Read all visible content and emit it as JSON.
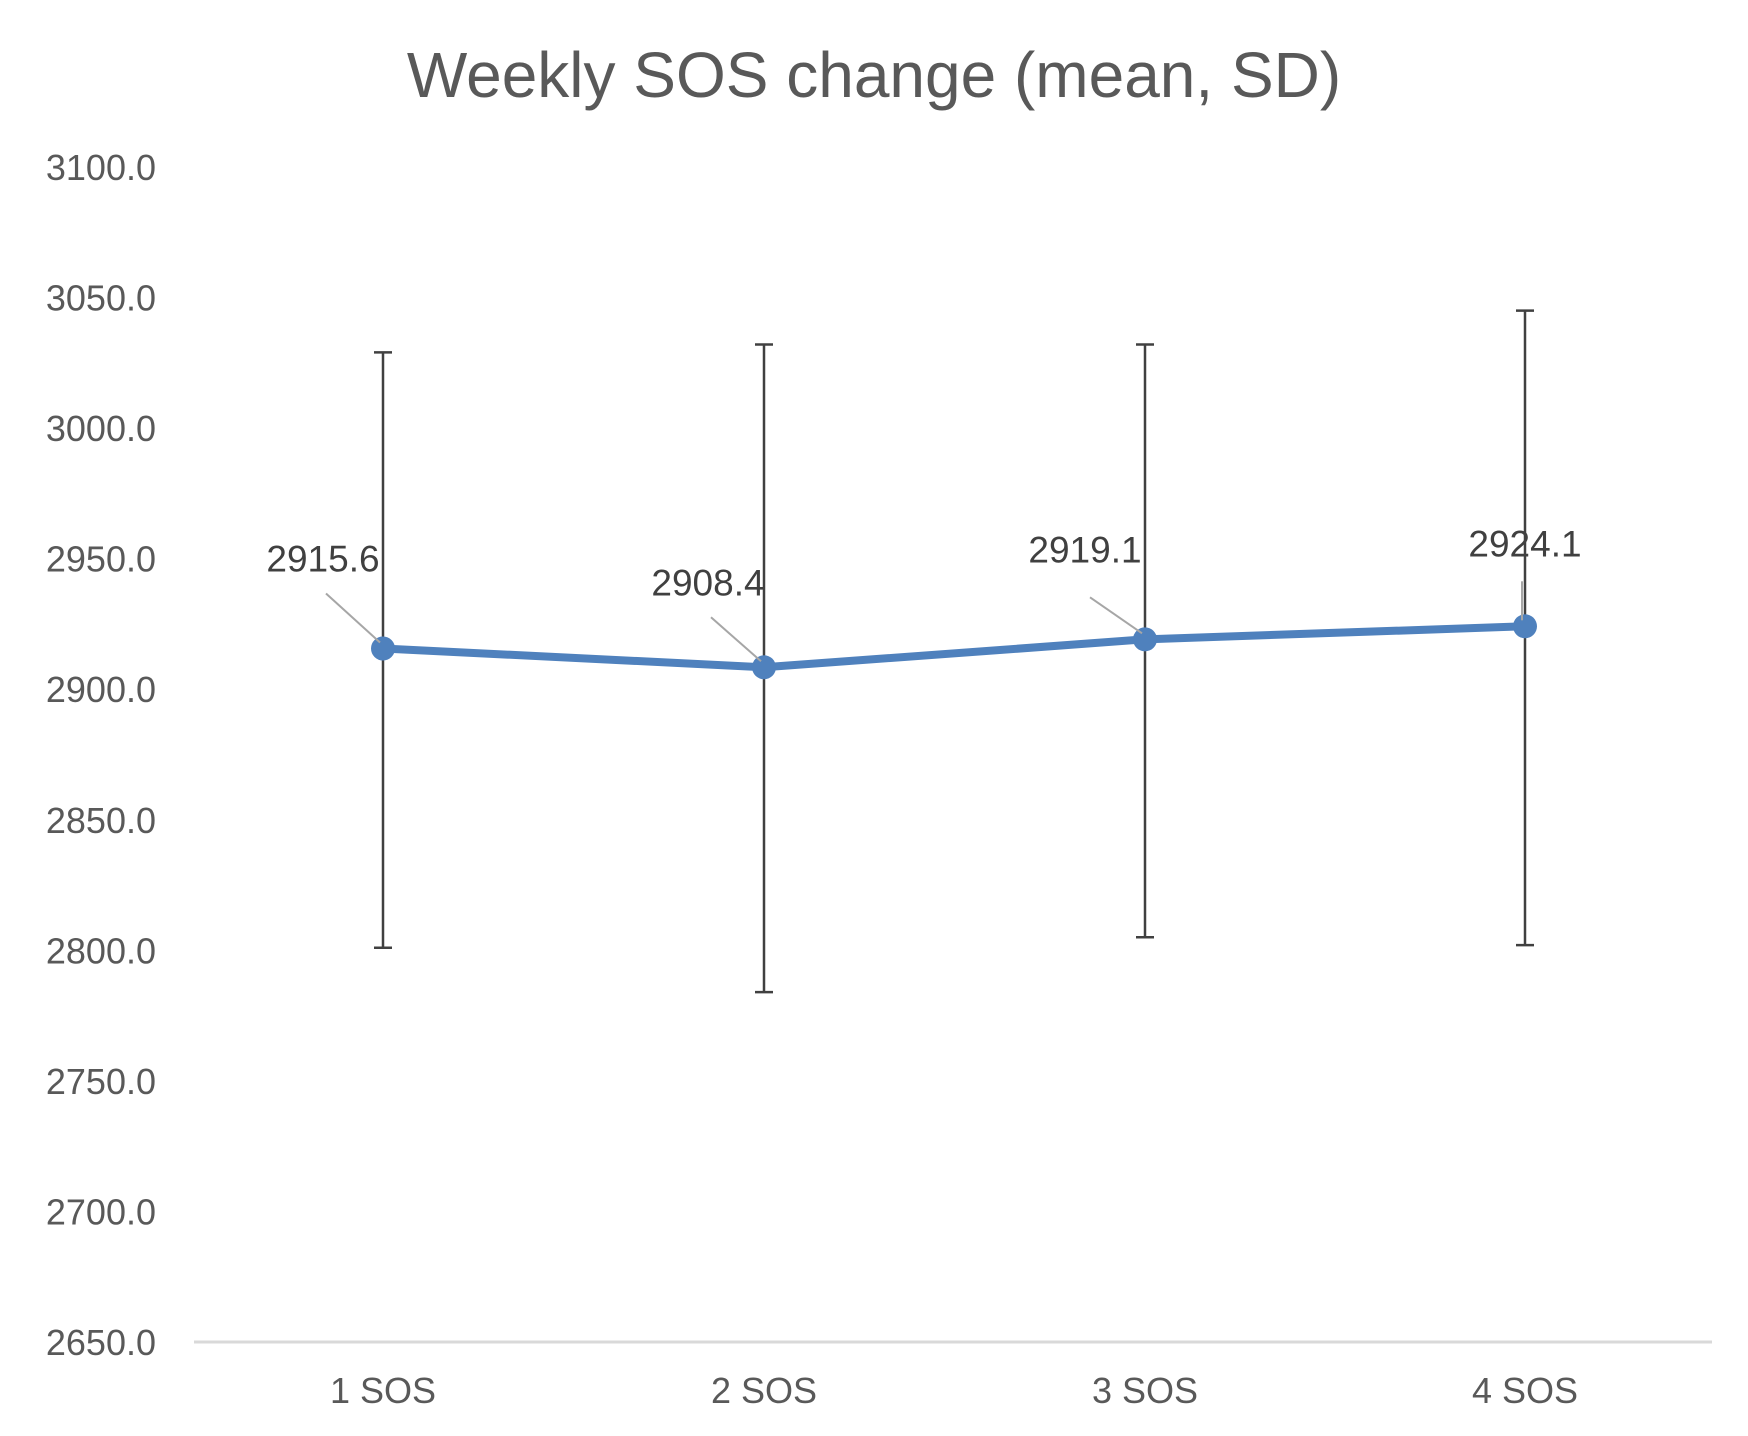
{
  "chart_data": {
    "type": "line",
    "title": "Weekly SOS change (mean, SD)",
    "xlabel": "",
    "ylabel": "",
    "categories": [
      "1 SOS",
      "2 SOS",
      "3 SOS",
      "4 SOS"
    ],
    "series": [
      {
        "values": [
          2915.6,
          2908.4,
          2919.1,
          2924.1
        ],
        "error_low": [
          2801,
          2784,
          2805,
          2802
        ],
        "error_high": [
          3029,
          3032,
          3032,
          3045
        ],
        "color": "#4f81bd"
      }
    ],
    "data_labels": [
      "2915.6",
      "2908.4",
      "2919.1",
      "2924.1"
    ],
    "yticks": [
      "3100.0",
      "3050.0",
      "3000.0",
      "2950.0",
      "2900.0",
      "2850.0",
      "2800.0",
      "2750.0",
      "2700.0",
      "2650.0"
    ],
    "ylim": [
      2650,
      3100
    ],
    "grid": false,
    "legend": "none",
    "colors": {
      "line": "#4f81bd",
      "error_bar": "#404040",
      "axis": "#d9d9d9",
      "text": "#595959",
      "label": "#404040",
      "leader": "#a6a6a6"
    }
  }
}
